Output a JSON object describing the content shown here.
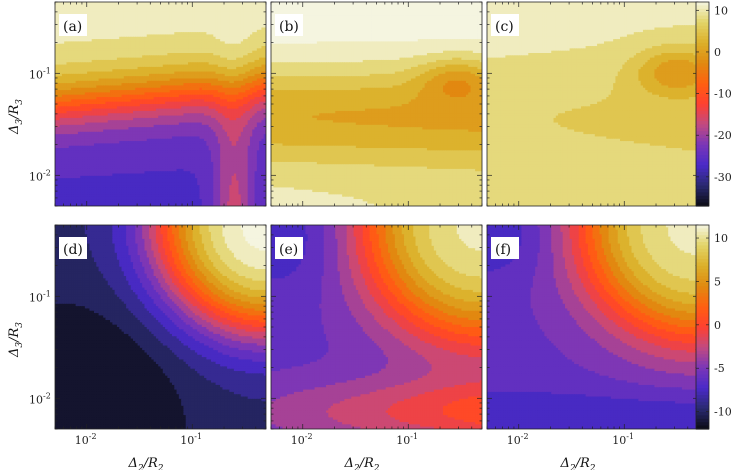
{
  "chart_data": {
    "type": "heatmap",
    "layout": "2x3 contour panels",
    "x_axis": {
      "label_main": "Δ",
      "label_sub": "2",
      "label_mid": "/R",
      "label_sub2": "2",
      "scale": "log",
      "range": [
        0.005,
        0.5
      ],
      "ticks": [
        {
          "value": 0.01,
          "base": "10",
          "exp": "-2"
        },
        {
          "value": 0.1,
          "base": "10",
          "exp": "-1"
        }
      ]
    },
    "y_axis": {
      "label_main": "Δ",
      "label_sub": "3",
      "label_mid": "/R",
      "label_sub2": "3",
      "scale": "log",
      "range": [
        0.005,
        0.5
      ],
      "ticks": [
        {
          "value": 0.01,
          "base": "10",
          "exp": "-2"
        },
        {
          "value": 0.1,
          "base": "10",
          "exp": "-1"
        }
      ]
    },
    "colorbars": [
      {
        "row": 0,
        "range": [
          -37,
          12
        ],
        "tick_labels": [
          "10",
          "0",
          "-10",
          "-20",
          "-30"
        ],
        "tick_values": [
          10,
          0,
          -10,
          -20,
          -30
        ]
      },
      {
        "row": 1,
        "range": [
          -12,
          11.5
        ],
        "tick_labels": [
          "10",
          "5",
          "0",
          "-5",
          "-10"
        ],
        "tick_values": [
          10,
          5,
          0,
          -5,
          -10
        ]
      }
    ],
    "colormap": [
      "#0b0b14",
      "#2a2a70",
      "#4a2ac8",
      "#7a36b8",
      "#c24a80",
      "#ff4030",
      "#ff6010",
      "#e08a10",
      "#dcb02a",
      "#e2d468",
      "#f5f5e0"
    ],
    "panels": [
      {
        "tag": "(a)",
        "row": 0,
        "col": 0,
        "kind": "a"
      },
      {
        "tag": "(b)",
        "row": 0,
        "col": 1,
        "kind": "b"
      },
      {
        "tag": "(c)",
        "row": 0,
        "col": 2,
        "kind": "c"
      },
      {
        "tag": "(d)",
        "row": 1,
        "col": 0,
        "kind": "d"
      },
      {
        "tag": "(e)",
        "row": 1,
        "col": 1,
        "kind": "e"
      },
      {
        "tag": "(f)",
        "row": 1,
        "col": 2,
        "kind": "f"
      }
    ]
  }
}
